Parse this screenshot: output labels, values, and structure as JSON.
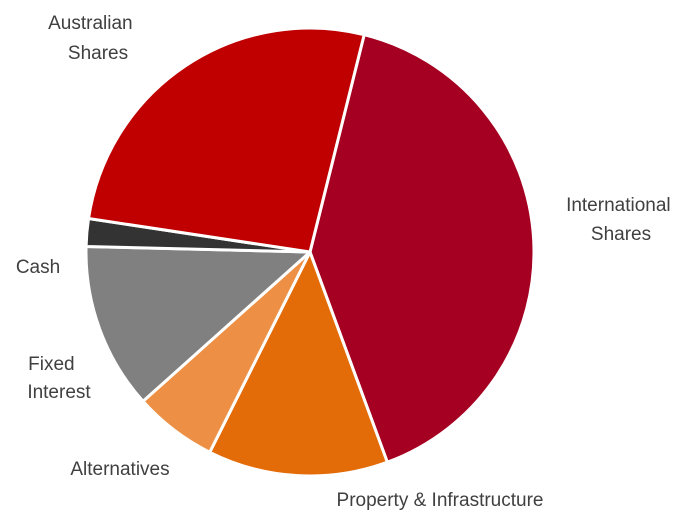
{
  "chart_data": {
    "type": "pie",
    "title": "",
    "legend": "none",
    "slices": [
      {
        "name": "International Shares",
        "label_lines": [
          "International",
          "Shares"
        ],
        "value": 40.5,
        "color": "#A50021"
      },
      {
        "name": "Property & Infrastructure",
        "label_lines": [
          "Property & Infrastructure"
        ],
        "value": 13.0,
        "color": "#E36C09"
      },
      {
        "name": "Alternatives",
        "label_lines": [
          "Alternatives"
        ],
        "value": 6.0,
        "color": "#ED8F44"
      },
      {
        "name": "Fixed Interest",
        "label_lines": [
          "Fixed",
          "Interest"
        ],
        "value": 12.0,
        "color": "#808080"
      },
      {
        "name": "Cash",
        "label_lines": [
          "Cash"
        ],
        "value": 2.0,
        "color": "#333333"
      },
      {
        "name": "Australian Shares",
        "label_lines": [
          "Australian",
          "Shares"
        ],
        "value": 26.5,
        "color": "#C00000"
      }
    ]
  }
}
